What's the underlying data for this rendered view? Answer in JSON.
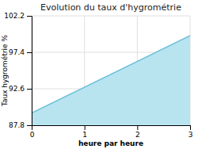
{
  "chart_data": {
    "type": "area",
    "title": "Evolution du taux d'hygrométrie",
    "xlabel": "heure par heure",
    "ylabel": "Taux hygrométrie %",
    "x": [
      0,
      3
    ],
    "series": [
      {
        "type": "area",
        "color": "#b8e4f0",
        "values": [
          89.4,
          99.6
        ]
      },
      {
        "type": "line",
        "color": "#6bbfd8",
        "values": [
          89.4,
          99.6
        ]
      }
    ],
    "xlim": [
      0,
      3
    ],
    "ylim": [
      87.8,
      102.2
    ],
    "xticks": [
      0,
      1,
      2,
      3
    ],
    "yticks": [
      87.8,
      92.6,
      97.4,
      102.2
    ],
    "grid": true
  }
}
